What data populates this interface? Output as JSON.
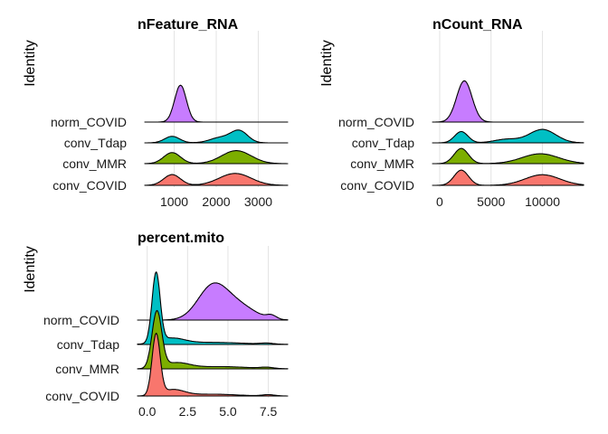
{
  "chart_data": [
    {
      "type": "ridgeline",
      "title": "nFeature_RNA",
      "ylabel": "Identity",
      "xlim": [
        300,
        3700
      ],
      "xticks": [
        1000,
        2000,
        3000
      ],
      "xtick_labels": [
        "1000",
        "2000",
        "3000"
      ],
      "categories": [
        "conv_COVID",
        "conv_MMR",
        "conv_Tdap",
        "norm_COVID"
      ],
      "series": [
        {
          "category": "conv_COVID",
          "color": "#F8766D",
          "scale": 0.55,
          "components": [
            {
              "mu": 950,
              "sd": 200,
              "w": 0.9
            },
            {
              "mu": 2450,
              "sd": 380,
              "w": 1.0
            }
          ]
        },
        {
          "category": "conv_MMR",
          "color": "#7CAE00",
          "scale": 0.6,
          "components": [
            {
              "mu": 950,
              "sd": 200,
              "w": 0.85
            },
            {
              "mu": 2480,
              "sd": 350,
              "w": 1.0
            }
          ]
        },
        {
          "category": "conv_Tdap",
          "color": "#00BFC4",
          "scale": 0.6,
          "components": [
            {
              "mu": 950,
              "sd": 180,
              "w": 0.5
            },
            {
              "mu": 2100,
              "sd": 250,
              "w": 0.4
            },
            {
              "mu": 2550,
              "sd": 200,
              "w": 0.9
            }
          ]
        },
        {
          "category": "norm_COVID",
          "color": "#C77CFF",
          "scale": 1.7,
          "components": [
            {
              "mu": 1150,
              "sd": 140,
              "w": 1.0
            }
          ]
        }
      ]
    },
    {
      "type": "ridgeline",
      "title": "nCount_RNA",
      "ylabel": "Identity",
      "xlim": [
        -700,
        14000
      ],
      "xticks": [
        0,
        5000,
        10000
      ],
      "xtick_labels": [
        "0",
        "5000",
        "10000"
      ],
      "categories": [
        "conv_COVID",
        "conv_MMR",
        "conv_Tdap",
        "norm_COVID"
      ],
      "series": [
        {
          "category": "conv_COVID",
          "color": "#F8766D",
          "scale": 0.7,
          "components": [
            {
              "mu": 2100,
              "sd": 700,
              "w": 1.0
            },
            {
              "mu": 10000,
              "sd": 1700,
              "w": 0.7
            }
          ]
        },
        {
          "category": "conv_MMR",
          "color": "#7CAE00",
          "scale": 0.7,
          "components": [
            {
              "mu": 2100,
              "sd": 700,
              "w": 1.0
            },
            {
              "mu": 9800,
              "sd": 1800,
              "w": 0.65
            }
          ]
        },
        {
          "category": "conv_Tdap",
          "color": "#00BFC4",
          "scale": 0.65,
          "components": [
            {
              "mu": 2100,
              "sd": 650,
              "w": 0.8
            },
            {
              "mu": 6500,
              "sd": 1200,
              "w": 0.25
            },
            {
              "mu": 10000,
              "sd": 1300,
              "w": 0.95
            }
          ]
        },
        {
          "category": "norm_COVID",
          "color": "#C77CFF",
          "scale": 1.9,
          "components": [
            {
              "mu": 2400,
              "sd": 750,
              "w": 1.0
            }
          ]
        }
      ]
    },
    {
      "type": "ridgeline",
      "title": "percent.mito",
      "ylabel": "Identity",
      "xlim": [
        -0.6,
        8.7
      ],
      "xticks": [
        0.0,
        2.5,
        5.0,
        7.5
      ],
      "xtick_labels": [
        "0.0",
        "2.5",
        "5.0",
        "7.5"
      ],
      "categories": [
        "conv_COVID",
        "conv_MMR",
        "conv_Tdap",
        "norm_COVID"
      ],
      "series": [
        {
          "category": "conv_COVID",
          "color": "#F8766D",
          "scale": 2.8,
          "components": [
            {
              "mu": 0.55,
              "sd": 0.25,
              "w": 1.0
            },
            {
              "mu": 1.6,
              "sd": 0.7,
              "w": 0.1
            },
            {
              "mu": 4.0,
              "sd": 1.5,
              "w": 0.03
            },
            {
              "mu": 7.5,
              "sd": 0.4,
              "w": 0.02
            }
          ]
        },
        {
          "category": "conv_MMR",
          "color": "#7CAE00",
          "scale": 2.6,
          "components": [
            {
              "mu": 0.6,
              "sd": 0.3,
              "w": 1.0
            },
            {
              "mu": 1.8,
              "sd": 0.8,
              "w": 0.1
            },
            {
              "mu": 4.5,
              "sd": 1.8,
              "w": 0.04
            },
            {
              "mu": 7.4,
              "sd": 0.4,
              "w": 0.02
            }
          ]
        },
        {
          "category": "conv_Tdap",
          "color": "#00BFC4",
          "scale": 3.2,
          "components": [
            {
              "mu": 0.55,
              "sd": 0.25,
              "w": 1.0
            },
            {
              "mu": 1.5,
              "sd": 0.8,
              "w": 0.08
            },
            {
              "mu": 4.0,
              "sd": 2.0,
              "w": 0.03
            },
            {
              "mu": 7.4,
              "sd": 0.4,
              "w": 0.015
            }
          ]
        },
        {
          "category": "norm_COVID",
          "color": "#C77CFF",
          "scale": 2.0,
          "components": [
            {
              "mu": 4.0,
              "sd": 0.9,
              "w": 0.7
            },
            {
              "mu": 5.5,
              "sd": 1.1,
              "w": 0.35
            },
            {
              "mu": 7.7,
              "sd": 0.3,
              "w": 0.08
            }
          ]
        }
      ]
    }
  ]
}
